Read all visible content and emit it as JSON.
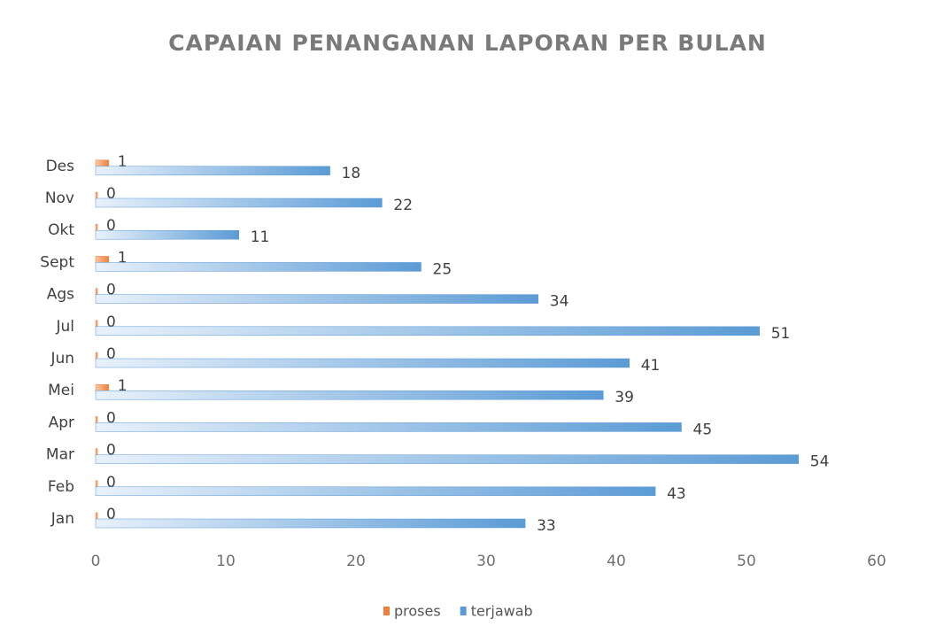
{
  "chart_data": {
    "type": "hbar",
    "title": "CAPAIAN PENANGANAN LAPORAN PER BULAN",
    "categories": [
      "Jan",
      "Feb",
      "Mar",
      "Apr",
      "Mei",
      "Jun",
      "Jul",
      "Ags",
      "Sept",
      "Okt",
      "Nov",
      "Des"
    ],
    "series": [
      {
        "name": "proses",
        "color": "#f07f3c",
        "values": [
          0,
          0,
          0,
          0,
          1,
          0,
          0,
          0,
          1,
          0,
          0,
          1
        ]
      },
      {
        "name": "terjawab",
        "color": "#5b9bd5",
        "values": [
          33,
          43,
          54,
          45,
          39,
          41,
          51,
          34,
          25,
          11,
          22,
          18
        ]
      }
    ],
    "xlim": [
      0,
      60
    ],
    "xticks": [
      0,
      10,
      20,
      30,
      40,
      50,
      60
    ],
    "legend": "bottom"
  }
}
